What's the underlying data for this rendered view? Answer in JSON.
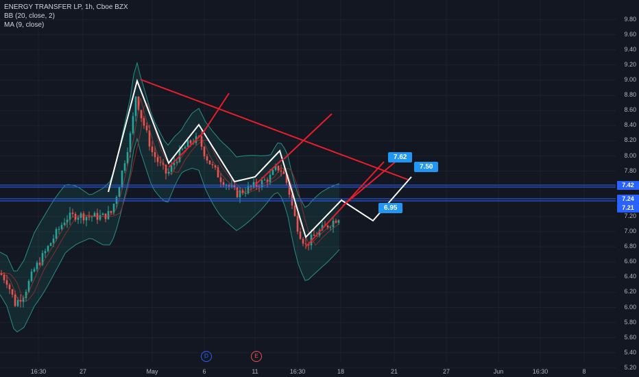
{
  "legend": {
    "symbol": "ENERGY TRANSFER LP, 1h, Cboe BZX",
    "bb": "BB (20, close, 2)",
    "ma": "MA (9, close)"
  },
  "price_axis": {
    "ticks": [
      "9.80",
      "9.60",
      "9.40",
      "9.20",
      "9.00",
      "8.80",
      "8.60",
      "8.40",
      "8.20",
      "8.00",
      "7.80",
      "7.60",
      "7.40",
      "7.20",
      "7.00",
      "6.80",
      "6.60",
      "6.40",
      "6.20",
      "6.00",
      "5.80",
      "5.60",
      "5.40",
      "5.20"
    ],
    "tags": [
      "7.42",
      "7.24",
      "7.21"
    ]
  },
  "time_axis": {
    "labels": [
      "16:30",
      "27",
      "May",
      "6",
      "11",
      "16:30",
      "18",
      "21",
      "27",
      "Jun",
      "16:30",
      "8"
    ]
  },
  "callouts": {
    "c1": "7.62",
    "c2": "7.50",
    "c3": "6.95"
  },
  "events": {
    "dividend": "D",
    "earnings": "E"
  },
  "colors": {
    "background": "#131722",
    "up": "#26a69a",
    "down": "#ef5350",
    "trendline": "#e91e2b",
    "zigzag": "#ffffff",
    "bb_band": "#1f6f6a",
    "tag": "#2962ff",
    "callout": "#2196f3"
  }
}
